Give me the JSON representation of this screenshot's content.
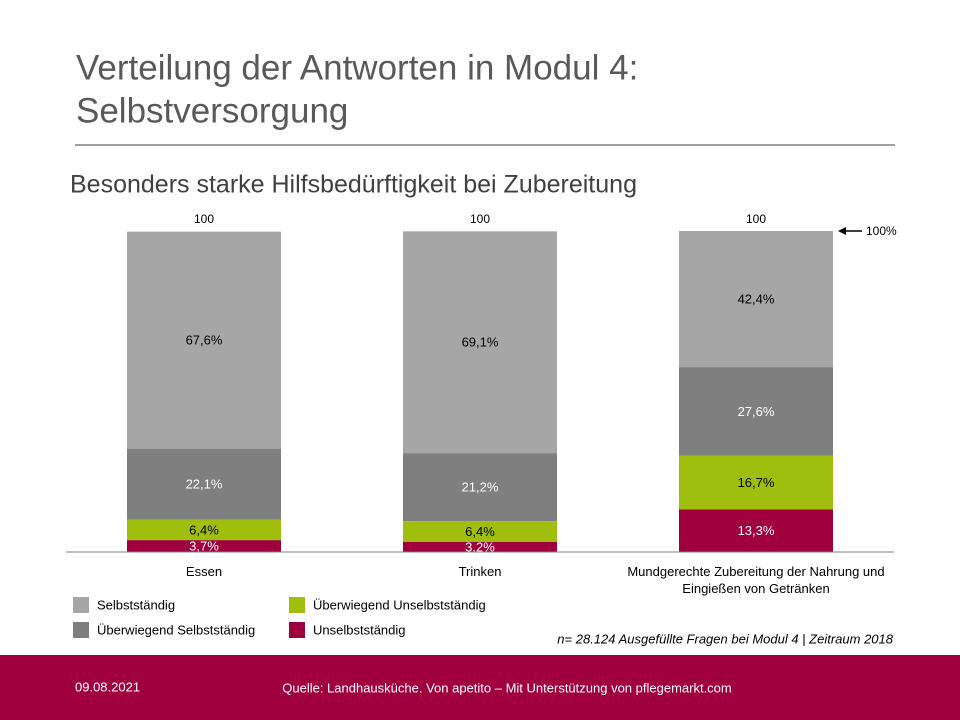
{
  "slide": {
    "title_lines": [
      "Verteilung der Antworten in Modul 4:",
      "Selbstversorgung"
    ],
    "date": "09.08.2021",
    "source": "Quelle: Landhausküche. Von apetito – Mit Unterstützung von pflegemarkt.com"
  },
  "chart_data": {
    "type": "stacked_bar",
    "title": "Besonders starke Hilfsbedürftigkeit bei Zubereitung",
    "categories": [
      "Essen",
      "Trinken",
      "Mundgerechte Zubereitung der Nahrung und Eingießen von Getränken"
    ],
    "series": [
      {
        "name": "Selbstständig",
        "color": "#a6a6a6",
        "label_color": "#000000",
        "values": [
          67.6,
          69.1,
          42.4
        ],
        "value_labels": [
          "67,6%",
          "69,1%",
          "42,4%"
        ]
      },
      {
        "name": "Überwiegend Selbstständig",
        "color": "#7f7f7f",
        "label_color": "#ffffff",
        "values": [
          22.1,
          21.2,
          27.6
        ],
        "value_labels": [
          "22,1%",
          "21,2%",
          "27,6%"
        ]
      },
      {
        "name": "Überwiegend Unselbstständig",
        "color": "#9fbe0e",
        "label_color": "#000000",
        "values": [
          6.4,
          6.4,
          16.7
        ],
        "value_labels": [
          "6,4%",
          "6,4%",
          "16,7%"
        ]
      },
      {
        "name": "Unselbstständig",
        "color": "#a0003d",
        "label_color": "#ffffff",
        "values": [
          3.7,
          3.2,
          13.3
        ],
        "value_labels": [
          "3,7%",
          "3,2%",
          "13,3%"
        ]
      }
    ],
    "totals": [
      100,
      100,
      100
    ],
    "annotation": {
      "text": "100%",
      "value": 100
    },
    "ylim": [
      0,
      100
    ],
    "note": "n= 28.124 Ausgefüllte Fragen bei Modul 4 | Zeitraum 2018"
  }
}
